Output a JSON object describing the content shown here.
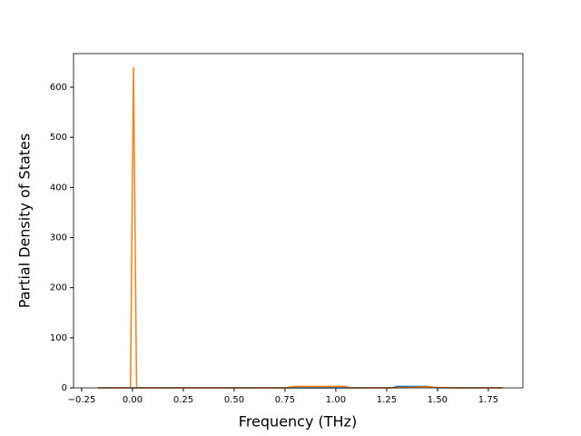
{
  "chart_data": {
    "type": "line",
    "xlabel": "Frequency (THz)",
    "ylabel": "Partial Density of States",
    "x": [
      -0.17,
      -0.01,
      0.005,
      0.02,
      0.75,
      0.8,
      1.05,
      1.07,
      1.28,
      1.3,
      1.45,
      1.5,
      1.6,
      1.82
    ],
    "series": [
      {
        "color": "#1f77b4",
        "values": [
          0,
          0,
          0,
          0,
          0,
          0,
          0,
          0,
          0,
          3,
          3,
          0,
          0,
          0
        ]
      },
      {
        "color": "#ff7f0e",
        "values": [
          0,
          0,
          640,
          0,
          0,
          3,
          3,
          0,
          0,
          0,
          2,
          1,
          0,
          0
        ]
      }
    ],
    "xlim": [
      -0.29,
      1.92
    ],
    "ylim": [
      0,
      667
    ],
    "xticks": [
      {
        "value": -0.25,
        "label": "−0.25"
      },
      {
        "value": 0,
        "label": "0.00"
      },
      0.25,
      {
        "value": 0.5,
        "label": "0.50"
      },
      0.75,
      {
        "value": 1,
        "label": "1.00"
      },
      1.25,
      {
        "value": 1.5,
        "label": "1.50"
      },
      1.75
    ],
    "yticks": [
      0,
      100,
      200,
      300,
      400,
      500,
      600
    ]
  }
}
